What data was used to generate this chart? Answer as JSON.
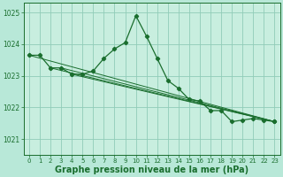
{
  "bg_color": "#b8e8d8",
  "plot_bg": "#c8eedf",
  "grid_color": "#90ccb8",
  "line_color": "#1a6e2e",
  "xlabel": "Graphe pression niveau de la mer (hPa)",
  "xlabel_fontsize": 7,
  "ylim": [
    1020.5,
    1025.3
  ],
  "xlim": [
    -0.5,
    23.5
  ],
  "yticks": [
    1021,
    1022,
    1023,
    1024,
    1025
  ],
  "xticks": [
    0,
    1,
    2,
    3,
    4,
    5,
    6,
    7,
    8,
    9,
    10,
    11,
    12,
    13,
    14,
    15,
    16,
    17,
    18,
    19,
    20,
    21,
    22,
    23
  ],
  "main_x": [
    0,
    1,
    2,
    3,
    4,
    5,
    6,
    7,
    8,
    9,
    10,
    11,
    12,
    13,
    14,
    15,
    16,
    17,
    18,
    19,
    20,
    21,
    22,
    23
  ],
  "main_y": [
    1023.65,
    1023.65,
    1023.25,
    1023.25,
    1023.05,
    1023.05,
    1023.15,
    1023.55,
    1023.85,
    1024.05,
    1024.9,
    1024.25,
    1023.55,
    1022.85,
    1022.6,
    1022.25,
    1022.2,
    1021.9,
    1021.9,
    1021.55,
    1021.6,
    1021.65,
    1021.6,
    1021.55
  ],
  "straight_lines": [
    {
      "x": [
        0,
        23
      ],
      "y": [
        1023.65,
        1021.55
      ]
    },
    {
      "x": [
        2,
        23
      ],
      "y": [
        1023.25,
        1021.55
      ]
    },
    {
      "x": [
        3,
        23
      ],
      "y": [
        1023.25,
        1021.55
      ]
    },
    {
      "x": [
        4,
        23
      ],
      "y": [
        1023.05,
        1021.55
      ]
    }
  ]
}
